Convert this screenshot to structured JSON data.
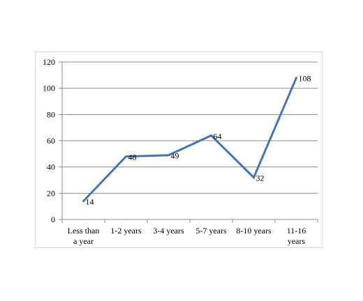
{
  "chart_data": {
    "type": "line",
    "categories": [
      [
        "Less than",
        "a year"
      ],
      [
        "1-2 years"
      ],
      [
        "3-4 years"
      ],
      [
        "5-7 years"
      ],
      [
        "8-10 years"
      ],
      [
        "11-16",
        "years"
      ]
    ],
    "series": [
      {
        "values": [
          14,
          48,
          49,
          64,
          32,
          108
        ]
      }
    ],
    "data_labels": [
      "14",
      "48",
      "49",
      "64",
      "32",
      "108"
    ],
    "ylim": [
      0,
      120
    ],
    "yticks": [
      0,
      20,
      40,
      60,
      80,
      100,
      120
    ],
    "grid": true,
    "legend": "none",
    "line_color": "#4a74ac",
    "grid_color": "#8c8c8c",
    "axis_color": "#8c8c8c"
  }
}
